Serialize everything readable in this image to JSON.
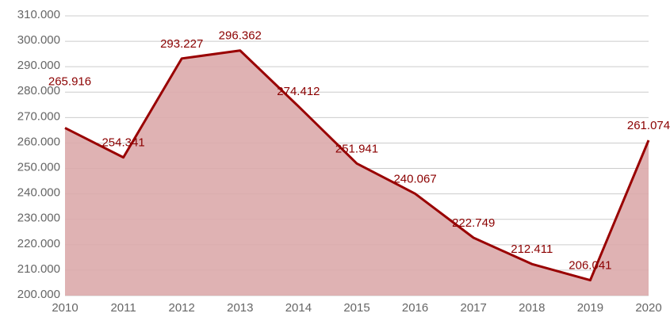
{
  "chart_data": {
    "type": "area",
    "categories": [
      "2010",
      "2011",
      "2012",
      "2013",
      "2014",
      "2015",
      "2016",
      "2017",
      "2018",
      "2019",
      "2020"
    ],
    "values": [
      265916,
      254341,
      293227,
      296362,
      274412,
      251941,
      240067,
      222749,
      212411,
      206041,
      261074
    ],
    "value_labels": [
      "265.916",
      "254.341",
      "293.227",
      "296.362",
      "274.412",
      "251.941",
      "240.067",
      "222.749",
      "212.411",
      "206.041",
      "261.074"
    ],
    "color": "#990000",
    "fill": "#dcaaab",
    "ylim": [
      200000,
      310000
    ],
    "yticks": [
      {
        "value": 200000,
        "label": "200.000"
      },
      {
        "value": 210000,
        "label": "210.000"
      },
      {
        "value": 220000,
        "label": "220.000"
      },
      {
        "value": 230000,
        "label": "230.000"
      },
      {
        "value": 240000,
        "label": "240.000"
      },
      {
        "value": 250000,
        "label": "250.000"
      },
      {
        "value": 260000,
        "label": "260.000"
      },
      {
        "value": 270000,
        "label": "270.000"
      },
      {
        "value": 280000,
        "label": "280.000"
      },
      {
        "value": 290000,
        "label": "290.000"
      },
      {
        "value": 300000,
        "label": "300.000"
      },
      {
        "value": 310000,
        "label": "310.000"
      }
    ],
    "grid": true
  }
}
